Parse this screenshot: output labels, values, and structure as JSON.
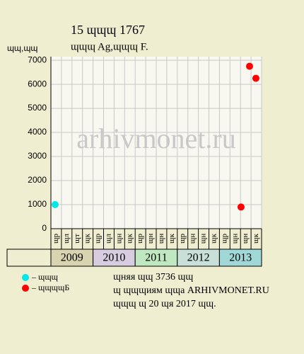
{
  "chart_data": {
    "type": "scatter",
    "title": "15 ɰɰɰ 1767",
    "subtitle": "ɰɰɰ Ag,ɰɰɰ F.",
    "y_label": "ɰɰ,ɰɰ",
    "watermark": "arhivmonet.ru",
    "categories": [
      "ɰр",
      "ɰл",
      "ɰт",
      "ɰк",
      "ɰр",
      "ɰл",
      "ɰн",
      "ɰк",
      "ɰр",
      "ɰн",
      "ɰн",
      "ɰк",
      "ɰр",
      "ɰн",
      "ɰн",
      "ɰк",
      "ɰр",
      "ɰн",
      "ɰн",
      "ɰк"
    ],
    "groups": [
      {
        "label": "2009",
        "color": "#d8d4b0"
      },
      {
        "label": "2010",
        "color": "#d8cce0"
      },
      {
        "label": "2011",
        "color": "#c0e8c0"
      },
      {
        "label": "2012",
        "color": "#c8e0d8"
      },
      {
        "label": "2013",
        "color": "#a0d8d8"
      }
    ],
    "xlim": [
      0,
      20
    ],
    "ylim": [
      0,
      7150
    ],
    "yticks": [
      0,
      1000,
      2000,
      3000,
      4000,
      5000,
      6000,
      7000
    ],
    "grid": true,
    "series": [
      {
        "name": "– ɰɰɰ",
        "color": "#00e8e8",
        "x": [
          0.4
        ],
        "values": [
          1000
        ]
      },
      {
        "name": "– ɰɰɰɰБ",
        "color": "#ff0000",
        "x": [
          18.05,
          18.86,
          19.46
        ],
        "values": [
          900,
          6750,
          6250
        ]
      }
    ],
    "footer": [
      "ɰняя ɰɰ 3736 ɰɰ",
      "ɰ ɰɰɰиям ɰɰа ARHIVMONET.RU",
      "ɰɰɰ ɰ 20 ɰя 2017 ɰɰ."
    ]
  }
}
